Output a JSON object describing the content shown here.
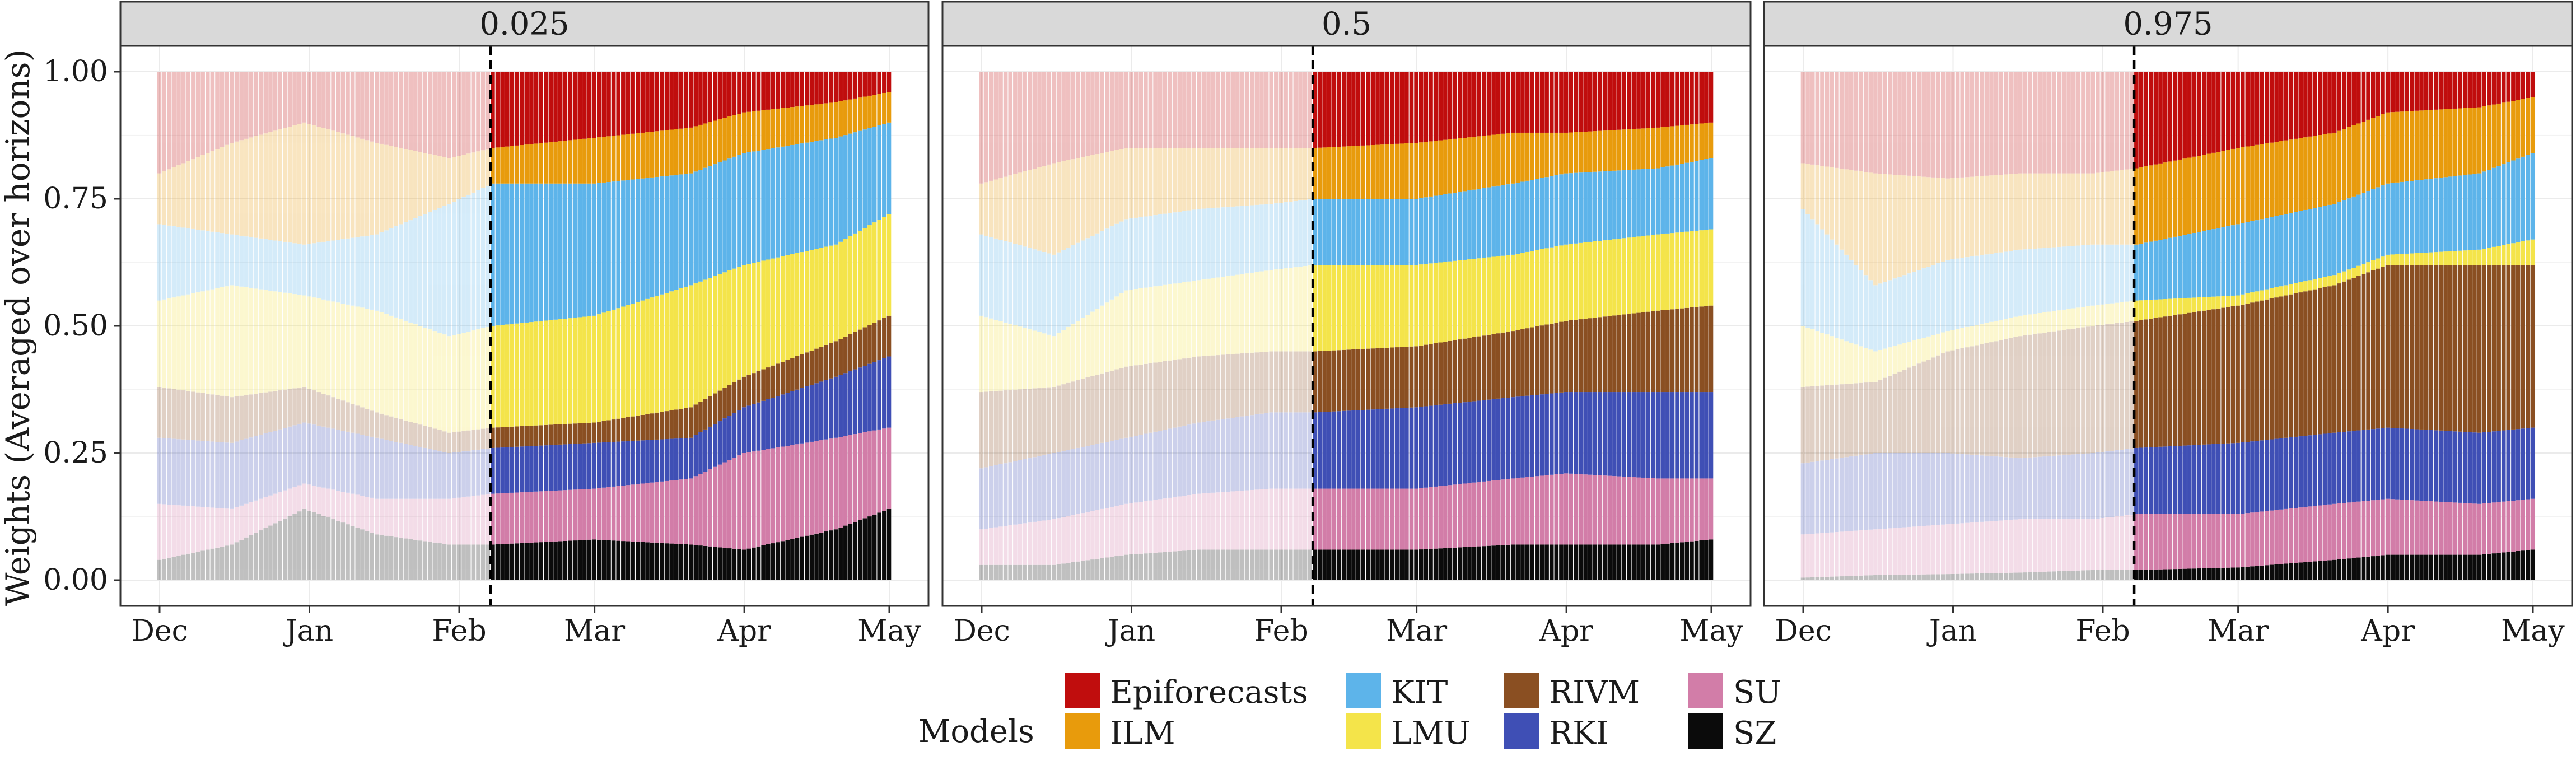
{
  "chart_data": {
    "type": "area",
    "subtype": "stacked-bar-100-percent",
    "ylabel": "Weights (Averaged over horizons)",
    "xlabel": "",
    "ylim": [
      0,
      1
    ],
    "y_ticks": [
      0,
      0.25,
      0.5,
      0.75,
      1
    ],
    "y_tick_labels": [
      "0.00",
      "0.25",
      "0.50",
      "0.75",
      "1.00"
    ],
    "x_tick_labels": [
      "Dec",
      "Jan",
      "Feb",
      "Mar",
      "Apr",
      "May"
    ],
    "x_tick_positions_days": [
      0,
      31,
      62,
      90,
      121,
      151
    ],
    "x_range_days": [
      0,
      151
    ],
    "evaluation_start_day": 69,
    "greyed_before_start": true,
    "grid": true,
    "legend": {
      "title": "Models",
      "position": "bottom",
      "entries": [
        "Epiforecasts",
        "ILM",
        "KIT",
        "LMU",
        "RIVM",
        "RKI",
        "SU",
        "SZ"
      ]
    },
    "colors": {
      "Epiforecasts": "#c00d0d",
      "ILM": "#e89b0c",
      "KIT": "#5db4ea",
      "LMU": "#f4e44a",
      "RIVM": "#8a4f22",
      "RKI": "#3f4fb5",
      "SU": "#d27da8",
      "SZ": "#0b0b0b"
    },
    "stack_order_bottom_to_top": [
      "SZ",
      "SU",
      "RKI",
      "RIVM",
      "LMU",
      "KIT",
      "ILM",
      "Epiforecasts"
    ],
    "cumulative_description": "values are cumulative stack tops (fraction) at each key day, ordered bottom to top",
    "panels": [
      {
        "title": "0.025",
        "days": [
          0,
          15,
          30,
          45,
          60,
          69,
          90,
          110,
          121,
          140,
          151
        ],
        "cumulative": {
          "SZ": [
            0.04,
            0.07,
            0.14,
            0.09,
            0.07,
            0.07,
            0.08,
            0.07,
            0.06,
            0.1,
            0.14
          ],
          "SU": [
            0.15,
            0.14,
            0.19,
            0.16,
            0.16,
            0.17,
            0.18,
            0.2,
            0.25,
            0.28,
            0.3
          ],
          "RKI": [
            0.28,
            0.27,
            0.31,
            0.28,
            0.25,
            0.26,
            0.27,
            0.28,
            0.34,
            0.4,
            0.44
          ],
          "RIVM": [
            0.38,
            0.36,
            0.38,
            0.33,
            0.29,
            0.3,
            0.31,
            0.34,
            0.4,
            0.47,
            0.52
          ],
          "LMU": [
            0.55,
            0.58,
            0.56,
            0.53,
            0.48,
            0.5,
            0.52,
            0.58,
            0.62,
            0.66,
            0.72
          ],
          "KIT": [
            0.7,
            0.68,
            0.66,
            0.68,
            0.74,
            0.78,
            0.78,
            0.8,
            0.84,
            0.87,
            0.9
          ],
          "ILM": [
            0.8,
            0.86,
            0.9,
            0.86,
            0.83,
            0.85,
            0.87,
            0.89,
            0.92,
            0.94,
            0.96
          ],
          "Epiforecasts": [
            1.0,
            1.0,
            1.0,
            1.0,
            1.0,
            1.0,
            1.0,
            1.0,
            1.0,
            1.0,
            1.0
          ]
        }
      },
      {
        "title": "0.5",
        "days": [
          0,
          15,
          30,
          45,
          60,
          69,
          90,
          110,
          121,
          140,
          151
        ],
        "cumulative": {
          "SZ": [
            0.03,
            0.03,
            0.05,
            0.06,
            0.06,
            0.06,
            0.06,
            0.07,
            0.07,
            0.07,
            0.08
          ],
          "SU": [
            0.1,
            0.12,
            0.15,
            0.17,
            0.18,
            0.18,
            0.18,
            0.2,
            0.21,
            0.2,
            0.2
          ],
          "RKI": [
            0.22,
            0.25,
            0.28,
            0.31,
            0.33,
            0.33,
            0.34,
            0.36,
            0.37,
            0.37,
            0.37
          ],
          "RIVM": [
            0.37,
            0.38,
            0.42,
            0.44,
            0.45,
            0.45,
            0.46,
            0.49,
            0.51,
            0.53,
            0.54
          ],
          "LMU": [
            0.52,
            0.48,
            0.57,
            0.59,
            0.61,
            0.62,
            0.62,
            0.64,
            0.66,
            0.68,
            0.69
          ],
          "KIT": [
            0.68,
            0.64,
            0.71,
            0.73,
            0.74,
            0.75,
            0.75,
            0.78,
            0.8,
            0.81,
            0.83
          ],
          "ILM": [
            0.78,
            0.82,
            0.85,
            0.85,
            0.85,
            0.85,
            0.86,
            0.88,
            0.88,
            0.89,
            0.9
          ],
          "Epiforecasts": [
            1.0,
            1.0,
            1.0,
            1.0,
            1.0,
            1.0,
            1.0,
            1.0,
            1.0,
            1.0,
            1.0
          ]
        }
      },
      {
        "title": "0.975",
        "days": [
          0,
          15,
          30,
          45,
          60,
          69,
          90,
          110,
          121,
          140,
          151
        ],
        "cumulative": {
          "SZ": [
            0.005,
            0.01,
            0.012,
            0.015,
            0.02,
            0.02,
            0.025,
            0.04,
            0.05,
            0.05,
            0.06
          ],
          "SU": [
            0.09,
            0.1,
            0.11,
            0.12,
            0.12,
            0.13,
            0.13,
            0.15,
            0.16,
            0.15,
            0.16
          ],
          "RKI": [
            0.23,
            0.25,
            0.25,
            0.24,
            0.25,
            0.26,
            0.27,
            0.29,
            0.3,
            0.29,
            0.3
          ],
          "RIVM": [
            0.38,
            0.39,
            0.45,
            0.48,
            0.5,
            0.51,
            0.54,
            0.58,
            0.62,
            0.62,
            0.62
          ],
          "LMU": [
            0.5,
            0.45,
            0.49,
            0.52,
            0.54,
            0.55,
            0.56,
            0.6,
            0.64,
            0.65,
            0.67
          ],
          "KIT": [
            0.73,
            0.58,
            0.63,
            0.65,
            0.66,
            0.66,
            0.7,
            0.74,
            0.78,
            0.8,
            0.84
          ],
          "ILM": [
            0.82,
            0.8,
            0.79,
            0.8,
            0.8,
            0.81,
            0.85,
            0.88,
            0.92,
            0.93,
            0.95
          ],
          "Epiforecasts": [
            1.0,
            1.0,
            1.0,
            1.0,
            1.0,
            1.0,
            1.0,
            1.0,
            1.0,
            1.0,
            1.0
          ]
        }
      }
    ]
  }
}
